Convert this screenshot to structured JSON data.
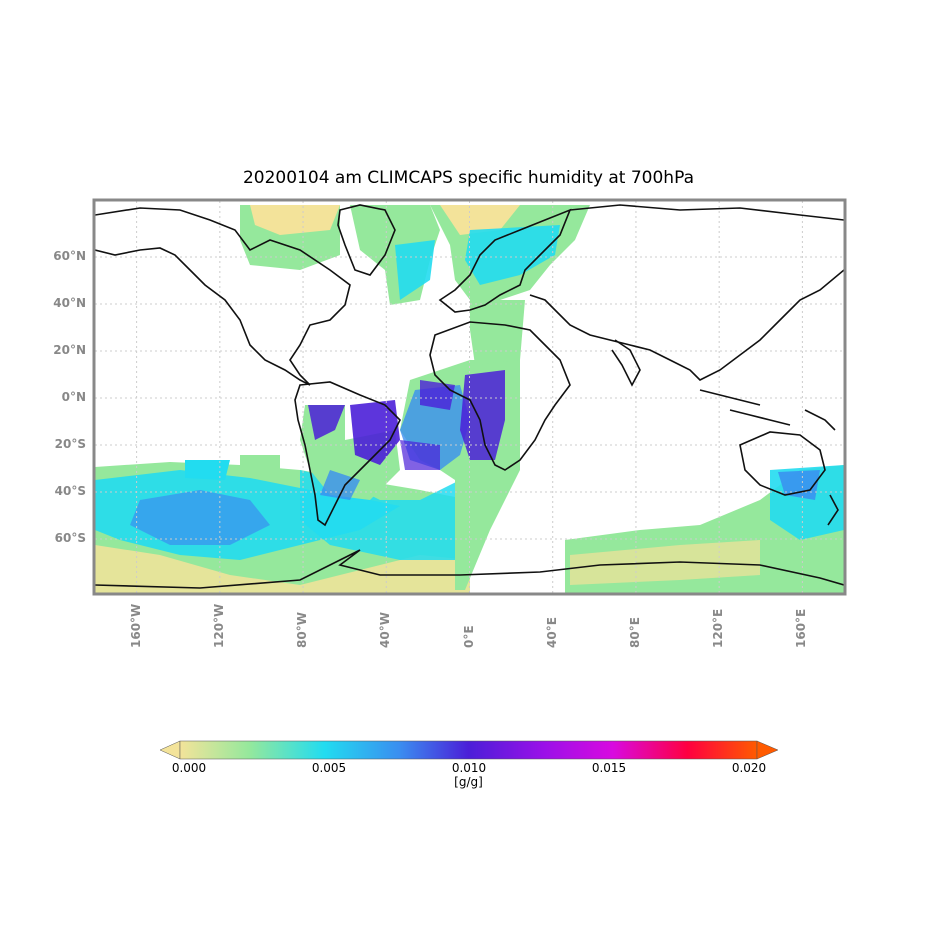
{
  "title": "20200104 am CLIMCAPS specific humidity at 700hPa",
  "map": {
    "lat_ticks": [
      {
        "value": 60,
        "label": "60°N"
      },
      {
        "value": 40,
        "label": "40°N"
      },
      {
        "value": 20,
        "label": "20°N"
      },
      {
        "value": 0,
        "label": "0°N"
      },
      {
        "value": -20,
        "label": "20°S"
      },
      {
        "value": -40,
        "label": "40°S"
      },
      {
        "value": -60,
        "label": "60°S"
      }
    ],
    "lon_ticks": [
      {
        "value": -160,
        "label": "160°W"
      },
      {
        "value": -120,
        "label": "120°W"
      },
      {
        "value": -80,
        "label": "80°W"
      },
      {
        "value": -40,
        "label": "40°W"
      },
      {
        "value": 0,
        "label": "0°E"
      },
      {
        "value": 40,
        "label": "40°E"
      },
      {
        "value": 80,
        "label": "80°E"
      },
      {
        "value": 120,
        "label": "120°E"
      },
      {
        "value": 160,
        "label": "160°E"
      }
    ],
    "lon_range": [
      -180,
      180
    ],
    "lat_range": [
      -84,
      84
    ],
    "grid": true,
    "colors": {
      "low": "#f3e39a",
      "mid_low": "#95e89c",
      "cyan": "#22dcf0",
      "blue": "#3a8ef0",
      "indigo": "#4b1fd8",
      "coast": "#111111"
    }
  },
  "colorbar": {
    "ticks": [
      "0.000",
      "0.005",
      "0.010",
      "0.015",
      "0.020"
    ],
    "units": "[g/g]",
    "colors": [
      "#f3e39a",
      "#95e89c",
      "#22dcf0",
      "#3a8ef0",
      "#4b1fd8",
      "#9a10e8",
      "#d80ae0",
      "#ff0040",
      "#ff5a00"
    ]
  }
}
